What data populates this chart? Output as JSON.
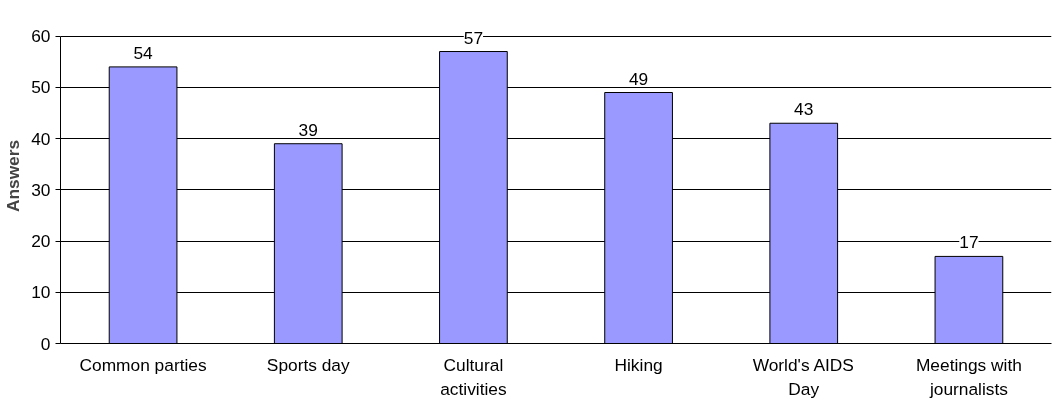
{
  "chart_data": {
    "type": "bar",
    "ylabel": "Answers",
    "categories": [
      "Common parties",
      "Sports day",
      "Cultural activities",
      "Hiking",
      "World's AIDS Day",
      "Meetings with journalists"
    ],
    "values": [
      54,
      39,
      57,
      49,
      43,
      17
    ],
    "color": "#9999ff",
    "ylim": [
      0,
      60
    ],
    "yticks": [
      0,
      10,
      20,
      30,
      40,
      50,
      60
    ],
    "grid": "y",
    "data_labels": true
  }
}
